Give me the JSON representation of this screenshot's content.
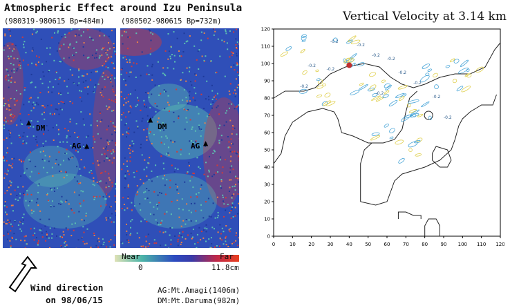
{
  "title": "Atmospheric Effect around Izu Peninsula",
  "panels": [
    {
      "subtitle": "(980319-980615 Bp=484m)",
      "dm": "DM",
      "ag": "AG"
    },
    {
      "subtitle": "(980502-980615 Bp=732m)",
      "dm": "DM",
      "ag": "AG"
    }
  ],
  "colorbar": {
    "near": "Near",
    "far": "Far",
    "min": "0",
    "max": "11.8cm"
  },
  "wind": {
    "line1": "Wind direction",
    "line2": "on 98/06/15"
  },
  "mountains": {
    "ag": "AG:Mt.Amagi(1406m)",
    "dm": "DM:Mt.Daruma(982m)"
  },
  "colors": {
    "blue": "#2f4fb8",
    "red": "#d23a3a",
    "cyan": "#5cc0b0"
  },
  "chart_data": {
    "type": "contour",
    "title": "Vertical Velocity at 3.14 km",
    "xlim": [
      0,
      120
    ],
    "ylim": [
      0,
      120
    ],
    "xticks": [
      0,
      10,
      20,
      30,
      40,
      50,
      60,
      70,
      80,
      90,
      100,
      110,
      120
    ],
    "yticks": [
      0,
      10,
      20,
      30,
      40,
      50,
      60,
      70,
      80,
      90,
      100,
      110,
      120
    ],
    "contour_labels": [
      "-0.2",
      "-0.2",
      "-0.2",
      "-0.2",
      "-0.2",
      "-0.2",
      "-0.2",
      "-0.2",
      "-0.2",
      "-0.2",
      "-0.2",
      "-0.2"
    ],
    "coastline": [
      [
        0,
        80
      ],
      [
        6,
        84
      ],
      [
        16,
        84
      ],
      [
        22,
        86
      ],
      [
        30,
        94
      ],
      [
        38,
        98
      ],
      [
        48,
        100
      ],
      [
        56,
        98
      ],
      [
        62,
        92
      ],
      [
        68,
        88
      ],
      [
        74,
        86
      ],
      [
        80,
        88
      ],
      [
        88,
        92
      ],
      [
        96,
        94
      ],
      [
        104,
        94
      ],
      [
        112,
        98
      ],
      [
        117,
        108
      ],
      [
        120,
        112
      ]
    ],
    "coastline2": [
      [
        0,
        42
      ],
      [
        4,
        48
      ],
      [
        6,
        58
      ],
      [
        10,
        66
      ],
      [
        18,
        72
      ],
      [
        26,
        74
      ],
      [
        32,
        72
      ],
      [
        34,
        68
      ],
      [
        36,
        60
      ],
      [
        42,
        58
      ],
      [
        50,
        54
      ],
      [
        58,
        54
      ],
      [
        64,
        56
      ],
      [
        68,
        62
      ],
      [
        70,
        72
      ],
      [
        72,
        80
      ],
      [
        76,
        84
      ]
    ],
    "coastline3": [
      [
        46,
        20
      ],
      [
        46,
        32
      ],
      [
        46,
        42
      ],
      [
        48,
        50
      ],
      [
        52,
        54
      ]
    ],
    "coastline4": [
      [
        46,
        20
      ],
      [
        54,
        18
      ],
      [
        60,
        20
      ],
      [
        62,
        26
      ],
      [
        64,
        32
      ],
      [
        68,
        36
      ],
      [
        74,
        38
      ],
      [
        80,
        40
      ],
      [
        88,
        44
      ],
      [
        94,
        50
      ],
      [
        96,
        56
      ],
      [
        98,
        64
      ],
      [
        100,
        68
      ],
      [
        104,
        72
      ],
      [
        110,
        76
      ],
      [
        116,
        76
      ],
      [
        118,
        82
      ]
    ],
    "islands": [
      [
        [
          84,
          44
        ],
        [
          88,
          40
        ],
        [
          92,
          40
        ],
        [
          94,
          44
        ],
        [
          92,
          50
        ],
        [
          86,
          52
        ],
        [
          84,
          48
        ],
        [
          84,
          44
        ]
      ],
      [
        [
          80,
          0
        ],
        [
          80,
          6
        ],
        [
          82,
          10
        ],
        [
          86,
          10
        ],
        [
          88,
          6
        ],
        [
          88,
          0
        ]
      ],
      [
        [
          66,
          10
        ],
        [
          66,
          14
        ],
        [
          70,
          14
        ],
        [
          74,
          12
        ],
        [
          78,
          12
        ],
        [
          78,
          10
        ]
      ]
    ],
    "small_circle": [
      82,
      70
    ]
  }
}
